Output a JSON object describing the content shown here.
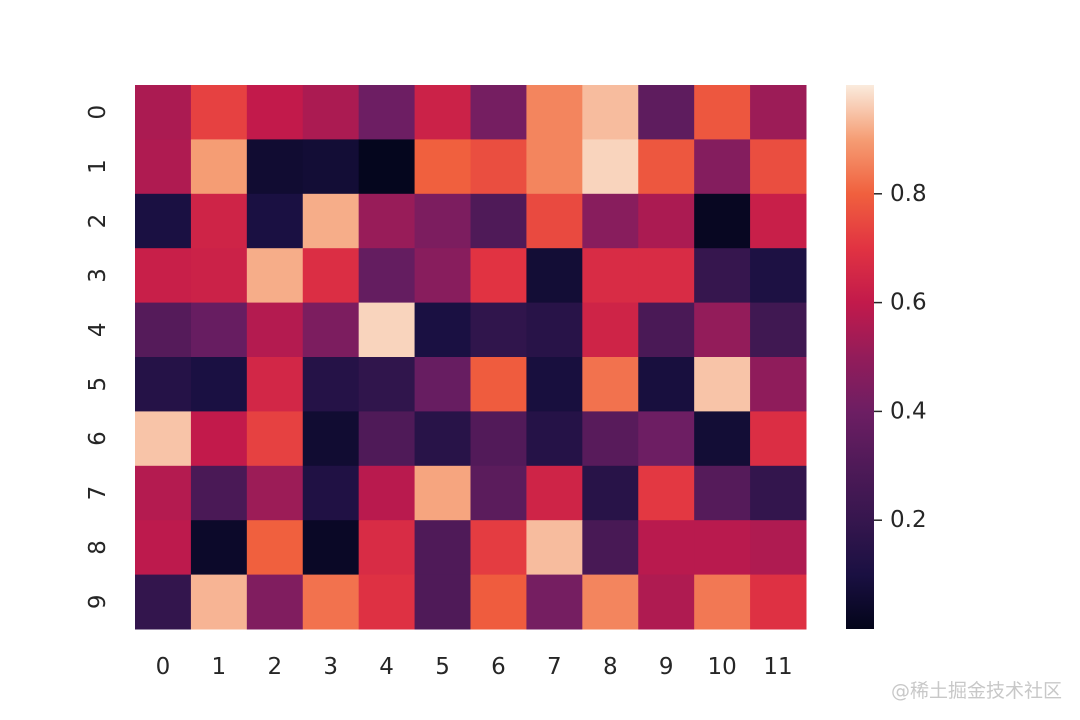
{
  "chart_data": {
    "type": "heatmap",
    "x_categories": [
      "0",
      "1",
      "2",
      "3",
      "4",
      "5",
      "6",
      "7",
      "8",
      "9",
      "10",
      "11"
    ],
    "y_categories": [
      "0",
      "1",
      "2",
      "3",
      "4",
      "5",
      "6",
      "7",
      "8",
      "9"
    ],
    "values": [
      [
        0.55,
        0.73,
        0.6,
        0.55,
        0.4,
        0.63,
        0.42,
        0.86,
        0.94,
        0.35,
        0.78,
        0.52
      ],
      [
        0.56,
        0.9,
        0.06,
        0.07,
        0.01,
        0.8,
        0.76,
        0.86,
        0.97,
        0.78,
        0.46,
        0.76
      ],
      [
        0.1,
        0.64,
        0.1,
        0.92,
        0.51,
        0.44,
        0.3,
        0.75,
        0.47,
        0.55,
        0.02,
        0.62
      ],
      [
        0.62,
        0.63,
        0.92,
        0.68,
        0.37,
        0.47,
        0.7,
        0.07,
        0.67,
        0.67,
        0.2,
        0.11
      ],
      [
        0.32,
        0.38,
        0.57,
        0.44,
        0.97,
        0.1,
        0.18,
        0.15,
        0.64,
        0.28,
        0.5,
        0.24
      ],
      [
        0.14,
        0.1,
        0.65,
        0.14,
        0.18,
        0.38,
        0.79,
        0.09,
        0.83,
        0.09,
        0.95,
        0.49
      ],
      [
        0.95,
        0.6,
        0.73,
        0.06,
        0.3,
        0.15,
        0.31,
        0.14,
        0.33,
        0.4,
        0.07,
        0.68
      ],
      [
        0.57,
        0.28,
        0.52,
        0.12,
        0.58,
        0.91,
        0.34,
        0.64,
        0.15,
        0.71,
        0.32,
        0.19
      ],
      [
        0.59,
        0.04,
        0.8,
        0.03,
        0.67,
        0.3,
        0.72,
        0.94,
        0.27,
        0.58,
        0.58,
        0.56
      ],
      [
        0.19,
        0.93,
        0.45,
        0.83,
        0.69,
        0.3,
        0.79,
        0.42,
        0.86,
        0.56,
        0.84,
        0.69
      ]
    ],
    "colormap": "rocket",
    "vmin": 0.0,
    "vmax": 1.0,
    "colorbar_ticks": [
      0.2,
      0.4,
      0.6,
      0.8
    ],
    "colorbar_tick_labels": [
      "0.2",
      "0.4",
      "0.6",
      "0.8"
    ],
    "title": "",
    "xlabel": "",
    "ylabel": "",
    "grid": false
  },
  "watermark": "@稀土掘金技术社区"
}
